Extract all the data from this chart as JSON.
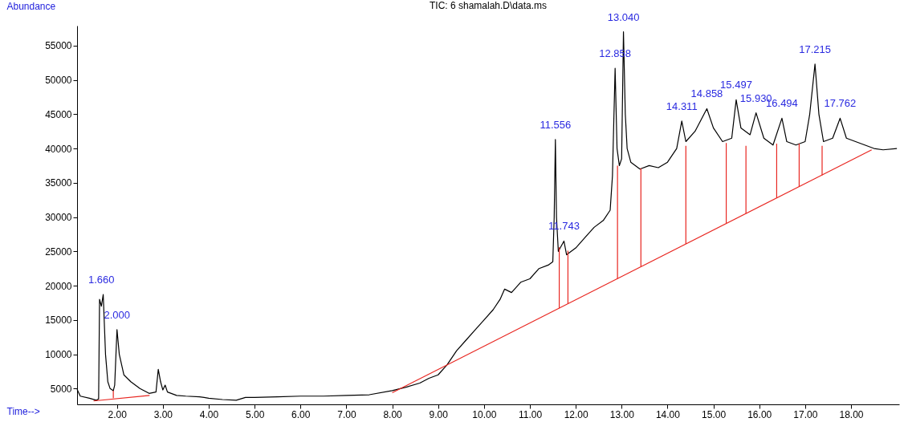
{
  "chart_data": {
    "type": "line",
    "title": "TIC: 6 shamalah.D\\data.ms",
    "xlabel": "Time-->",
    "ylabel": "Abundance",
    "xlim": [
      1.13,
      19.05
    ],
    "ylim": [
      2700,
      57900
    ],
    "xticks": [
      {
        "value": 2,
        "label": "2.00"
      },
      {
        "value": 3,
        "label": "3.00"
      },
      {
        "value": 4,
        "label": "4.00"
      },
      {
        "value": 5,
        "label": "5.00"
      },
      {
        "value": 6,
        "label": "6.00"
      },
      {
        "value": 7,
        "label": "7.00"
      },
      {
        "value": 8,
        "label": "8.00"
      },
      {
        "value": 9,
        "label": "9.00"
      },
      {
        "value": 10,
        "label": "10.00"
      },
      {
        "value": 11,
        "label": "11.00"
      },
      {
        "value": 12,
        "label": "12.00"
      },
      {
        "value": 13,
        "label": "13.00"
      },
      {
        "value": 14,
        "label": "14.00"
      },
      {
        "value": 15,
        "label": "15.00"
      },
      {
        "value": 16,
        "label": "16.00"
      },
      {
        "value": 17,
        "label": "17.00"
      },
      {
        "value": 18,
        "label": "18.00"
      }
    ],
    "yticks": [
      5000,
      10000,
      15000,
      20000,
      25000,
      30000,
      35000,
      40000,
      45000,
      50000,
      55000
    ],
    "grid": false,
    "legend": false,
    "marker": "none",
    "series": [
      {
        "type": "line",
        "color": "#000000",
        "x": [
          1.13,
          1.2,
          1.4,
          1.55,
          1.6,
          1.62,
          1.66,
          1.7,
          1.75,
          1.8,
          1.85,
          1.92,
          1.95,
          2.0,
          2.05,
          2.15,
          2.3,
          2.5,
          2.7,
          2.85,
          2.9,
          2.95,
          3.0,
          3.05,
          3.1,
          3.3,
          3.5,
          3.8,
          4.0,
          4.3,
          4.6,
          4.8,
          5.0,
          5.5,
          6.0,
          6.5,
          7.0,
          7.5,
          8.0,
          8.3,
          8.6,
          8.8,
          9.0,
          9.2,
          9.4,
          9.6,
          9.8,
          10.0,
          10.2,
          10.35,
          10.45,
          10.6,
          10.8,
          11.0,
          11.2,
          11.4,
          11.5,
          11.53,
          11.556,
          11.58,
          11.62,
          11.743,
          11.8,
          11.9,
          12.0,
          12.2,
          12.4,
          12.6,
          12.75,
          12.8,
          12.858,
          12.9,
          12.95,
          13.0,
          13.04,
          13.08,
          13.12,
          13.2,
          13.4,
          13.6,
          13.8,
          14.0,
          14.2,
          14.311,
          14.4,
          14.6,
          14.858,
          15.0,
          15.2,
          15.4,
          15.497,
          15.6,
          15.8,
          15.93,
          16.1,
          16.3,
          16.494,
          16.6,
          16.8,
          17.0,
          17.1,
          17.215,
          17.3,
          17.4,
          17.6,
          17.762,
          17.9,
          18.1,
          18.3,
          18.5,
          18.7,
          19.0
        ],
        "values": [
          4900,
          3900,
          3600,
          3300,
          3500,
          18000,
          17000,
          18700,
          10000,
          6000,
          5000,
          4700,
          5500,
          13600,
          10000,
          7000,
          6000,
          5000,
          4300,
          4500,
          7800,
          6000,
          4800,
          5500,
          4500,
          4000,
          3900,
          3800,
          3600,
          3400,
          3300,
          3700,
          3700,
          3800,
          3900,
          3900,
          4000,
          4100,
          4700,
          5200,
          5800,
          6500,
          7000,
          8500,
          10500,
          12000,
          13500,
          15000,
          16500,
          18000,
          19500,
          19000,
          20500,
          21000,
          22500,
          23000,
          23500,
          30000,
          41300,
          30000,
          25000,
          26500,
          24500,
          25000,
          25500,
          27000,
          28500,
          29500,
          31000,
          36000,
          51700,
          40000,
          37500,
          38500,
          57000,
          45000,
          40000,
          38000,
          37000,
          37500,
          37200,
          38000,
          40000,
          44000,
          41000,
          42500,
          45800,
          43000,
          41000,
          41500,
          47100,
          43000,
          42000,
          45200,
          41500,
          40500,
          44400,
          41000,
          40500,
          41000,
          45000,
          52300,
          45000,
          41000,
          41500,
          44400,
          41500,
          41000,
          40500,
          40000,
          39800,
          40000
        ]
      },
      {
        "type": "line",
        "color": "#e8251f",
        "x": [
          1.49,
          2.71
        ],
        "values": [
          3200,
          4000
        ]
      },
      {
        "type": "line",
        "color": "#e8251f",
        "x": [
          1.92,
          1.92
        ],
        "values": [
          3600,
          4700
        ]
      },
      {
        "type": "line",
        "color": "#e8251f",
        "x": [
          8.0,
          18.45
        ],
        "values": [
          4400,
          39800
        ]
      },
      {
        "type": "line",
        "color": "#e8251f",
        "x": [
          11.64,
          11.64
        ],
        "values": [
          16700,
          25600
        ]
      },
      {
        "type": "line",
        "color": "#e8251f",
        "x": [
          11.83,
          11.83
        ],
        "values": [
          17400,
          25100
        ]
      },
      {
        "type": "line",
        "color": "#e8251f",
        "x": [
          12.91,
          12.91
        ],
        "values": [
          21000,
          37500
        ]
      },
      {
        "type": "line",
        "color": "#e8251f",
        "x": [
          13.42,
          13.42
        ],
        "values": [
          22800,
          37100
        ]
      },
      {
        "type": "line",
        "color": "#e8251f",
        "x": [
          14.4,
          14.4
        ],
        "values": [
          26100,
          40400
        ]
      },
      {
        "type": "line",
        "color": "#e8251f",
        "x": [
          15.28,
          15.28
        ],
        "values": [
          29100,
          40800
        ]
      },
      {
        "type": "line",
        "color": "#e8251f",
        "x": [
          15.71,
          15.71
        ],
        "values": [
          30500,
          40400
        ]
      },
      {
        "type": "line",
        "color": "#e8251f",
        "x": [
          16.38,
          16.38
        ],
        "values": [
          32800,
          40700
        ]
      },
      {
        "type": "line",
        "color": "#e8251f",
        "x": [
          16.87,
          16.87
        ],
        "values": [
          34400,
          40700
        ]
      },
      {
        "type": "line",
        "color": "#e8251f",
        "x": [
          17.37,
          17.37
        ],
        "values": [
          36100,
          40400
        ]
      }
    ],
    "annotations": [
      {
        "text": "1.660",
        "x": 1.66,
        "y": 18700
      },
      {
        "text": "2.000",
        "x": 2.0,
        "y": 13600
      },
      {
        "text": "11.556",
        "x": 11.556,
        "y": 41300
      },
      {
        "text": "11.743",
        "x": 11.743,
        "y": 26500
      },
      {
        "text": "12.858",
        "x": 12.858,
        "y": 51700
      },
      {
        "text": "13.040",
        "x": 13.04,
        "y": 57000
      },
      {
        "text": "14.311",
        "x": 14.311,
        "y": 44000
      },
      {
        "text": "14.858",
        "x": 14.858,
        "y": 45800
      },
      {
        "text": "15.497",
        "x": 15.497,
        "y": 47100
      },
      {
        "text": "15.930",
        "x": 15.93,
        "y": 45200
      },
      {
        "text": "16.494",
        "x": 16.494,
        "y": 44400
      },
      {
        "text": "17.215",
        "x": 17.215,
        "y": 52300
      },
      {
        "text": "17.762",
        "x": 17.762,
        "y": 44400
      }
    ]
  }
}
